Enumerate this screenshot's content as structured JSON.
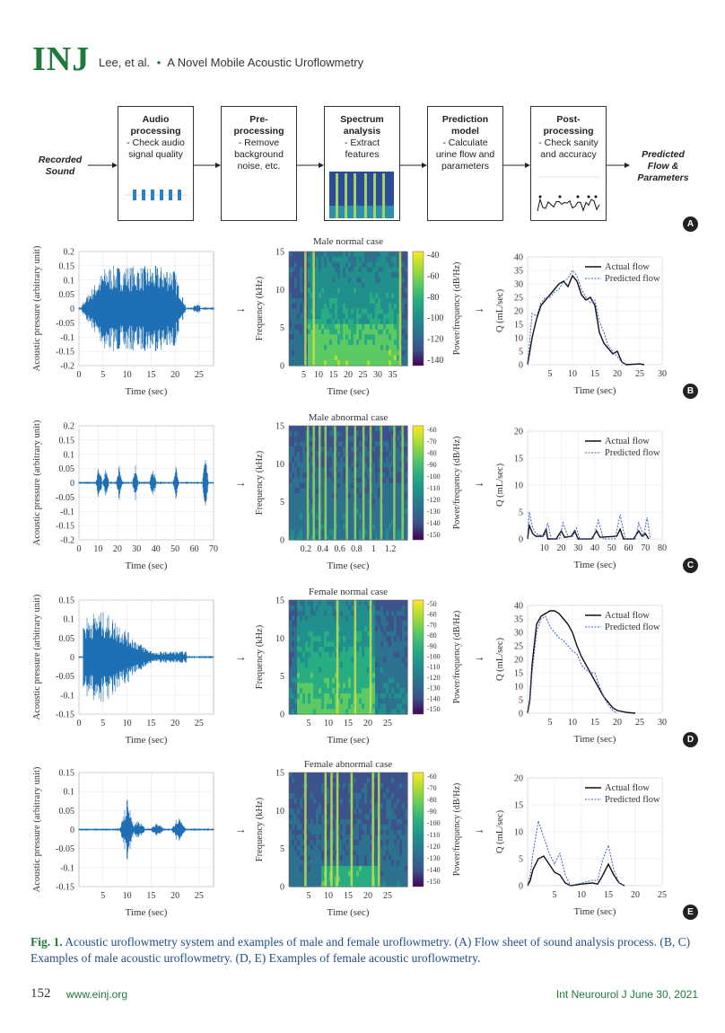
{
  "header": {
    "logo": "INJ",
    "authors": "Lee, et al.",
    "separator": "•",
    "title": "A Novel Mobile Acoustic Uroflowmetry"
  },
  "flow": {
    "input_label": [
      "Recorded",
      "Sound"
    ],
    "output_label": [
      "Predicted",
      "Flow &",
      "Parameters"
    ],
    "steps": [
      {
        "title": [
          "Audio",
          "processing"
        ],
        "desc": [
          "- Check audio",
          "signal quality"
        ]
      },
      {
        "title": [
          "Pre-",
          "processing"
        ],
        "desc": [
          "- Remove",
          "background",
          "noise, etc."
        ]
      },
      {
        "title": [
          "Spectrum",
          "analysis"
        ],
        "desc": [
          "- Extract",
          "features"
        ]
      },
      {
        "title": [
          "Prediction",
          "model"
        ],
        "desc": [
          "- Calculate",
          "urine flow and",
          "parameters"
        ]
      },
      {
        "title": [
          "Post-",
          "processing"
        ],
        "desc": [
          "- Check sanity",
          "and accuracy"
        ]
      }
    ],
    "badge": "A"
  },
  "rows": [
    {
      "badge": "B",
      "spec_title": "Male normal case",
      "wave": {
        "ylabel": "Acoustic pressure (arbitrary unit)",
        "xlabel": "Time (sec)",
        "yticks": [
          "0.2",
          "0.15",
          "0.1",
          "0.05",
          "0",
          "-0.05",
          "-0.1",
          "-0.15",
          "-0.2"
        ],
        "xticks": [
          "0",
          "5",
          "10",
          "15",
          "20",
          "25"
        ],
        "xmax": 28,
        "pattern": "normal_m"
      },
      "spec": {
        "ylabel": "Frequency (kHz)",
        "xlabel": "Time (sec)",
        "yticks": [
          "15",
          "10",
          "5",
          "0"
        ],
        "xticks": [
          "5",
          "10",
          "15",
          "20",
          "25",
          "30",
          "35"
        ],
        "cbar_label": "Power/frequency (dB/Hz)",
        "cticks": [
          "-40",
          "-60",
          "-80",
          "-100",
          "-120",
          "-140"
        ],
        "pattern": "normal_m"
      },
      "flow": {
        "ylabel": "Q (mL/sec)",
        "xlabel": "Time (sec)",
        "yticks": [
          "40",
          "35",
          "30",
          "25",
          "20",
          "15",
          "10",
          "5",
          "0"
        ],
        "xticks": [
          "5",
          "10",
          "15",
          "20",
          "25",
          "30"
        ],
        "ymax": 40,
        "xmax": 30,
        "legend": [
          "Actual flow",
          "Predicted flow"
        ],
        "actual": [
          [
            0,
            0
          ],
          [
            1,
            10
          ],
          [
            2,
            17
          ],
          [
            3,
            22
          ],
          [
            4,
            24
          ],
          [
            5,
            26
          ],
          [
            6,
            28
          ],
          [
            7,
            30
          ],
          [
            8,
            31
          ],
          [
            9,
            29
          ],
          [
            10,
            33
          ],
          [
            11,
            31
          ],
          [
            12,
            26
          ],
          [
            13,
            24
          ],
          [
            14,
            25
          ],
          [
            15,
            22
          ],
          [
            16,
            12
          ],
          [
            17,
            8
          ],
          [
            18,
            6
          ],
          [
            19,
            4
          ],
          [
            20,
            5
          ],
          [
            21,
            1
          ],
          [
            22,
            0
          ],
          [
            25,
            0.3
          ],
          [
            26,
            0
          ]
        ],
        "predicted": [
          [
            0,
            0
          ],
          [
            1,
            19
          ],
          [
            2,
            18
          ],
          [
            3,
            23
          ],
          [
            4,
            25
          ],
          [
            5,
            25
          ],
          [
            6,
            27
          ],
          [
            7,
            28
          ],
          [
            8,
            31
          ],
          [
            9,
            32
          ],
          [
            10,
            35
          ],
          [
            11,
            33
          ],
          [
            12,
            28
          ],
          [
            13,
            25
          ],
          [
            14,
            23
          ],
          [
            15,
            24
          ],
          [
            16,
            16
          ],
          [
            17,
            12
          ],
          [
            18,
            7
          ],
          [
            19,
            5
          ],
          [
            20,
            3
          ],
          [
            21,
            1
          ],
          [
            22,
            0
          ]
        ]
      }
    },
    {
      "badge": "C",
      "spec_title": "Male abnormal case",
      "wave": {
        "ylabel": "Acoustic pressure (arbitrary unit)",
        "xlabel": "Time (sec)",
        "yticks": [
          "0.2",
          "0.15",
          "0.1",
          "0.05",
          "0",
          "-0.05",
          "-0.1",
          "-0.15",
          "-0.2"
        ],
        "xticks": [
          "0",
          "10",
          "20",
          "30",
          "40",
          "50",
          "60",
          "70"
        ],
        "xmax": 70,
        "pattern": "abn_m"
      },
      "spec": {
        "ylabel": "Frequency (kHz)",
        "xlabel": "Time (sec)",
        "yticks": [
          "15",
          "10",
          "5",
          "0"
        ],
        "xticks": [
          "0.2",
          "0.4",
          "0.6",
          "0.8",
          "1",
          "1.2"
        ],
        "cbar_label": "Power/frequency (dB/Hz)",
        "cticks": [
          "-60",
          "-70",
          "-80",
          "-90",
          "-100",
          "-110",
          "-120",
          "-130",
          "-140",
          "-150"
        ],
        "pattern": "abn_m"
      },
      "flow": {
        "ylabel": "Q (mL/sec)",
        "xlabel": "Time (sec)",
        "yticks": [
          "20",
          "15",
          "10",
          "5",
          "0"
        ],
        "xticks": [
          "10",
          "20",
          "30",
          "40",
          "50",
          "60",
          "70",
          "80"
        ],
        "ymax": 20,
        "xmax": 80,
        "legend": [
          "Actual flow",
          "Predicted flow"
        ],
        "actual": [
          [
            0,
            0
          ],
          [
            1,
            2.5
          ],
          [
            3,
            1
          ],
          [
            5,
            0.5
          ],
          [
            9,
            0.5
          ],
          [
            11,
            1.8
          ],
          [
            12,
            0
          ],
          [
            17,
            0
          ],
          [
            20,
            1.5
          ],
          [
            22,
            0.3
          ],
          [
            26,
            0.5
          ],
          [
            28,
            1.5
          ],
          [
            30,
            0
          ],
          [
            38,
            0
          ],
          [
            41,
            1.5
          ],
          [
            43,
            0.3
          ],
          [
            53,
            0.5
          ],
          [
            55,
            1.8
          ],
          [
            57,
            0
          ],
          [
            63,
            0
          ],
          [
            66,
            1.5
          ],
          [
            68,
            0.5
          ],
          [
            70,
            1
          ],
          [
            72,
            0
          ]
        ],
        "predicted": [
          [
            0,
            0
          ],
          [
            1,
            5
          ],
          [
            3,
            2
          ],
          [
            5,
            1
          ],
          [
            10,
            0.5
          ],
          [
            12,
            3
          ],
          [
            14,
            0
          ],
          [
            19,
            0
          ],
          [
            21,
            3
          ],
          [
            24,
            0.5
          ],
          [
            27,
            0.5
          ],
          [
            29,
            2
          ],
          [
            31,
            0
          ],
          [
            39,
            0
          ],
          [
            42,
            3.5
          ],
          [
            45,
            0
          ],
          [
            52,
            0
          ],
          [
            55,
            4.5
          ],
          [
            58,
            0
          ],
          [
            64,
            0
          ],
          [
            66,
            3
          ],
          [
            69,
            0.5
          ],
          [
            71,
            4
          ],
          [
            73,
            0
          ]
        ]
      }
    },
    {
      "badge": "D",
      "spec_title": "Female normal case",
      "wave": {
        "ylabel": "Acoustic pressure (arbitrary unit)",
        "xlabel": "Time (sec)",
        "yticks": [
          "0.15",
          "0.1",
          "0.05",
          "0",
          "-0.05",
          "-0.1",
          "-0.15"
        ],
        "xticks": [
          "0",
          "5",
          "10",
          "15",
          "20",
          "25"
        ],
        "xmax": 28,
        "pattern": "normal_f"
      },
      "spec": {
        "ylabel": "Frequency (kHz)",
        "xlabel": "Time (sec)",
        "yticks": [
          "15",
          "10",
          "5",
          "0"
        ],
        "xticks": [
          "5",
          "10",
          "15",
          "20",
          "25"
        ],
        "cbar_label": "Power/frequency (dB/Hz)",
        "cticks": [
          "-50",
          "-60",
          "-70",
          "-80",
          "-90",
          "-100",
          "-110",
          "-120",
          "-130",
          "-140",
          "-150"
        ],
        "pattern": "normal_f"
      },
      "flow": {
        "ylabel": "Q (mL/sec)",
        "xlabel": "Time (sec)",
        "yticks": [
          "40",
          "35",
          "30",
          "25",
          "20",
          "15",
          "10",
          "5",
          "0"
        ],
        "xticks": [
          "5",
          "10",
          "15",
          "20",
          "25",
          "30"
        ],
        "ymax": 40,
        "xmax": 30,
        "legend": [
          "Actual flow",
          "Predicted flow"
        ],
        "actual": [
          [
            0,
            0
          ],
          [
            0.5,
            5
          ],
          [
            1,
            18
          ],
          [
            2,
            33
          ],
          [
            3,
            36
          ],
          [
            4,
            37
          ],
          [
            5,
            38
          ],
          [
            6,
            38
          ],
          [
            7,
            37
          ],
          [
            8,
            35
          ],
          [
            9,
            33
          ],
          [
            10,
            30
          ],
          [
            11,
            25
          ],
          [
            12,
            21
          ],
          [
            13,
            18
          ],
          [
            14,
            15
          ],
          [
            15,
            12
          ],
          [
            16,
            9
          ],
          [
            17,
            6
          ],
          [
            18,
            4
          ],
          [
            19,
            2
          ],
          [
            20,
            1
          ],
          [
            22,
            0.3
          ],
          [
            24,
            0
          ]
        ],
        "predicted": [
          [
            0,
            0
          ],
          [
            0.5,
            4
          ],
          [
            1,
            15
          ],
          [
            2,
            30
          ],
          [
            3,
            35
          ],
          [
            4,
            36
          ],
          [
            5,
            32
          ],
          [
            6,
            30
          ],
          [
            7,
            28
          ],
          [
            8,
            27
          ],
          [
            9,
            25
          ],
          [
            10,
            23
          ],
          [
            11,
            22
          ],
          [
            12,
            18
          ],
          [
            13,
            16
          ],
          [
            14,
            15
          ],
          [
            15,
            15
          ],
          [
            16,
            10
          ],
          [
            17,
            6
          ],
          [
            18,
            3
          ],
          [
            19,
            1
          ],
          [
            20,
            0
          ]
        ]
      }
    },
    {
      "badge": "E",
      "spec_title": "Female abnormal case",
      "wave": {
        "ylabel": "Acoustic pressure (arbitrary unit)",
        "xlabel": "Time (sec)",
        "yticks": [
          "0.15",
          "0.1",
          "0.05",
          "0",
          "-0.05",
          "-0.1",
          "-0.15"
        ],
        "xticks": [
          "5",
          "10",
          "15",
          "20",
          "25"
        ],
        "xmax": 28,
        "pattern": "abn_f"
      },
      "spec": {
        "ylabel": "Frequency (kHz)",
        "xlabel": "Time (sec)",
        "yticks": [
          "15",
          "10",
          "5",
          "0"
        ],
        "xticks": [
          "5",
          "10",
          "15",
          "20",
          "25"
        ],
        "cbar_label": "Power/frequency (dB/Hz)",
        "cticks": [
          "-60",
          "-70",
          "-80",
          "-90",
          "-100",
          "-110",
          "-120",
          "-130",
          "-140",
          "-150"
        ],
        "pattern": "abn_f"
      },
      "flow": {
        "ylabel": "Q (mL/sec)",
        "xlabel": "Time (sec)",
        "yticks": [
          "20",
          "15",
          "10",
          "5",
          "0"
        ],
        "xticks": [
          "5",
          "10",
          "15",
          "20",
          "25"
        ],
        "ymax": 20,
        "xmax": 25,
        "legend": [
          "Actual flow",
          "Predicted flow"
        ],
        "actual": [
          [
            0,
            0
          ],
          [
            0.5,
            1
          ],
          [
            1,
            3
          ],
          [
            2,
            5
          ],
          [
            3,
            5.5
          ],
          [
            4,
            4
          ],
          [
            5,
            2.5
          ],
          [
            6,
            2
          ],
          [
            7,
            0.5
          ],
          [
            8,
            0
          ],
          [
            10,
            0.3
          ],
          [
            12,
            0.5
          ],
          [
            13,
            0.3
          ],
          [
            14,
            2
          ],
          [
            15,
            4
          ],
          [
            16,
            2
          ],
          [
            17,
            0.5
          ],
          [
            18,
            0
          ]
        ],
        "predicted": [
          [
            0,
            0
          ],
          [
            0.5,
            2
          ],
          [
            1,
            6
          ],
          [
            2,
            12
          ],
          [
            3,
            9
          ],
          [
            4,
            6
          ],
          [
            5,
            4
          ],
          [
            6,
            6
          ],
          [
            7,
            2
          ],
          [
            8,
            0
          ],
          [
            10,
            0.5
          ],
          [
            12,
            1
          ],
          [
            13,
            1
          ],
          [
            14,
            5
          ],
          [
            15,
            7.5
          ],
          [
            16,
            3
          ],
          [
            17,
            0.5
          ],
          [
            18,
            0
          ]
        ]
      }
    }
  ],
  "caption": {
    "fig": "Fig. 1.",
    "text": " Acoustic uroflowmetry system and examples of male and female uroflowmetry. (A) Flow sheet of sound analysis process. (B, C) Examples of male acoustic uroflowmetry. (D, E) Examples of female acoustic uroflowmetry."
  },
  "footer": {
    "page": "152",
    "site": "www.einj.org",
    "journal": "Int Neurourol J  June 30, 2021"
  },
  "colors": {
    "green": "#1f7a3a",
    "wave": "#1f6fb5",
    "actual": "#111111",
    "predicted": "#3b5fc0"
  }
}
